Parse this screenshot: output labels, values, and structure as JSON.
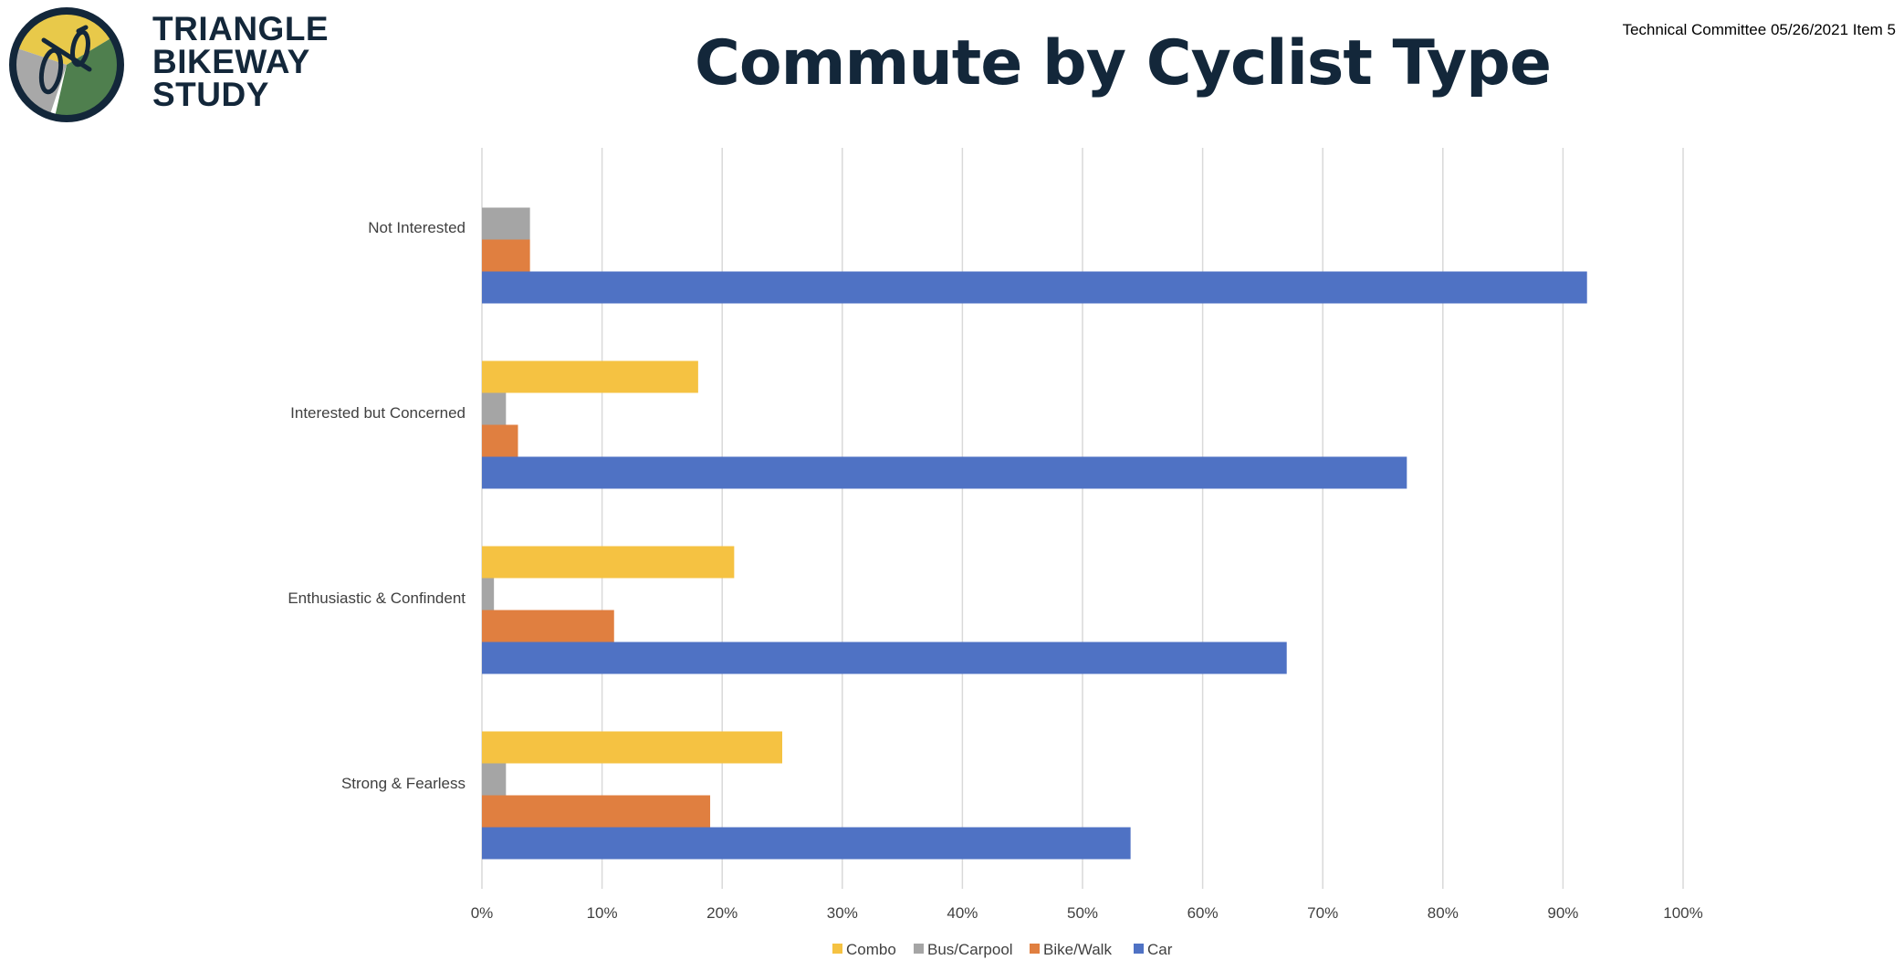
{
  "logo": {
    "lines": [
      "TRIANGLE",
      "BIKEWAY",
      "STUDY"
    ],
    "colors": {
      "yellow": "#e8c94a",
      "gray": "#a8a8a8",
      "green": "#4f7f4e",
      "ring": "#13273a"
    },
    "icon": "bicycle-icon"
  },
  "header": {
    "title": "Commute by Cyclist Type",
    "note": "Technical Committee 05/26/2021 Item 5"
  },
  "chart_data": {
    "type": "bar",
    "orientation": "horizontal",
    "title": "Commute by Cyclist Type",
    "xlabel": "",
    "ylabel": "",
    "categories": [
      "Not Interested",
      "Interested but Concerned",
      "Enthusiastic & Confindent",
      "Strong & Fearless"
    ],
    "series": [
      {
        "name": "Combo",
        "color": "#f5c242",
        "values": [
          0,
          18,
          21,
          25
        ]
      },
      {
        "name": "Bus/Carpool",
        "color": "#a5a5a5",
        "values": [
          4,
          2,
          1,
          2
        ]
      },
      {
        "name": "Bike/Walk",
        "color": "#e07f40",
        "values": [
          4,
          3,
          11,
          19
        ]
      },
      {
        "name": "Car",
        "color": "#4f72c4",
        "values": [
          92,
          77,
          67,
          54
        ]
      }
    ],
    "xlim": [
      0,
      100
    ],
    "xticks": [
      0,
      10,
      20,
      30,
      40,
      50,
      60,
      70,
      80,
      90,
      100
    ],
    "tick_suffix": "%",
    "grid": true,
    "legend_position": "bottom"
  }
}
